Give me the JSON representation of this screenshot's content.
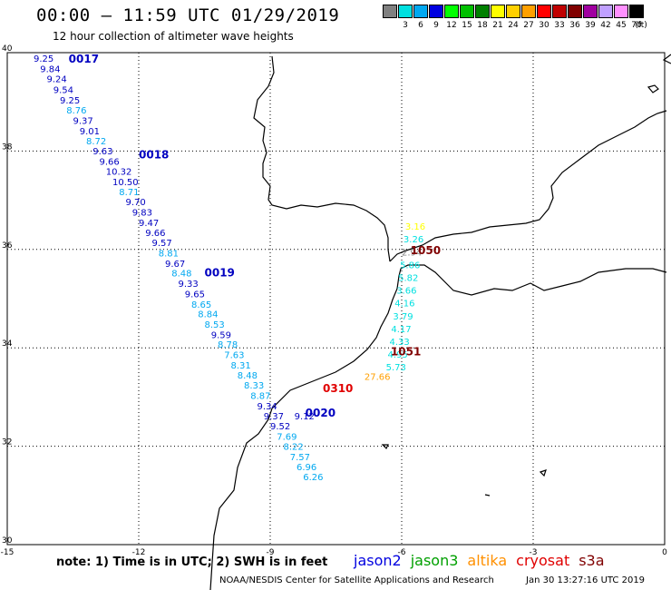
{
  "header": {
    "title": "00:00 – 11:59 UTC 01/29/2019",
    "subtitle": "12 hour collection of altimeter wave heights"
  },
  "color_scale": {
    "unit_label": "(ft)",
    "swatches": [
      {
        "color": "#808080",
        "label": ""
      },
      {
        "color": "#00e0e0",
        "label": "3"
      },
      {
        "color": "#00a8f0",
        "label": "6"
      },
      {
        "color": "#0000e0",
        "label": "9"
      },
      {
        "color": "#00ff00",
        "label": "12"
      },
      {
        "color": "#00c000",
        "label": "15"
      },
      {
        "color": "#008000",
        "label": "18"
      },
      {
        "color": "#ffff00",
        "label": "21"
      },
      {
        "color": "#ffd000",
        "label": "24"
      },
      {
        "color": "#ffa000",
        "label": "27"
      },
      {
        "color": "#ff0000",
        "label": "30"
      },
      {
        "color": "#c00000",
        "label": "33"
      },
      {
        "color": "#800000",
        "label": "36"
      },
      {
        "color": "#a000a0",
        "label": "39"
      },
      {
        "color": "#c0a0ff",
        "label": "42"
      },
      {
        "color": "#ff90ff",
        "label": "45"
      },
      {
        "color": "#000000",
        "label": "70"
      }
    ]
  },
  "map": {
    "lon_ticks": [
      "-15",
      "-12",
      "-9",
      "-6",
      "-3",
      "0"
    ],
    "lat_ticks": [
      "40",
      "38",
      "36",
      "34",
      "32",
      "30"
    ],
    "lon_range": [
      -15,
      0
    ],
    "lat_range": [
      30,
      40
    ],
    "tracks": [
      {
        "label": "0017",
        "color": "#0000c0",
        "lat": 39.8,
        "lon": -13.6
      },
      {
        "label": "0018",
        "color": "#0000c0",
        "lat": 37.85,
        "lon": -12.0
      },
      {
        "label": "0019",
        "color": "#0000c0",
        "lat": 35.45,
        "lon": -10.5
      },
      {
        "label": "0020",
        "color": "#0000c0",
        "lat": 32.6,
        "lon": -8.2
      },
      {
        "label": "0310",
        "color": "#e00000",
        "lat": 33.1,
        "lon": -7.8
      },
      {
        "label": "1050",
        "color": "#800000",
        "lat": 35.9,
        "lon": -5.8
      },
      {
        "label": "1051",
        "color": "#800000",
        "lat": 33.85,
        "lon": -6.25
      }
    ],
    "jason2_points": [
      {
        "v": "9.25",
        "lat": 39.82,
        "lon": -14.4,
        "c": "#0000c0"
      },
      {
        "v": "9.84",
        "lat": 39.6,
        "lon": -14.25,
        "c": "#0000c0"
      },
      {
        "v": "9.24",
        "lat": 39.4,
        "lon": -14.1,
        "c": "#0000c0"
      },
      {
        "v": "9.54",
        "lat": 39.18,
        "lon": -13.95,
        "c": "#0000c0"
      },
      {
        "v": "9.25",
        "lat": 38.97,
        "lon": -13.8,
        "c": "#0000c0"
      },
      {
        "v": "8.76",
        "lat": 38.76,
        "lon": -13.65,
        "c": "#00a8f0"
      },
      {
        "v": "9.37",
        "lat": 38.55,
        "lon": -13.5,
        "c": "#0000c0"
      },
      {
        "v": "9.01",
        "lat": 38.34,
        "lon": -13.35,
        "c": "#0000c0"
      },
      {
        "v": "8.72",
        "lat": 38.14,
        "lon": -13.2,
        "c": "#00a8f0"
      },
      {
        "v": "9.63",
        "lat": 37.93,
        "lon": -13.05,
        "c": "#0000c0"
      },
      {
        "v": "9.66",
        "lat": 37.72,
        "lon": -12.9,
        "c": "#0000c0"
      },
      {
        "v": "10.32",
        "lat": 37.52,
        "lon": -12.75,
        "c": "#0000c0"
      },
      {
        "v": "10.50",
        "lat": 37.31,
        "lon": -12.6,
        "c": "#0000c0"
      },
      {
        "v": "8.71",
        "lat": 37.1,
        "lon": -12.45,
        "c": "#00a8f0"
      },
      {
        "v": "9.70",
        "lat": 36.9,
        "lon": -12.3,
        "c": "#0000c0"
      },
      {
        "v": "9.83",
        "lat": 36.69,
        "lon": -12.15,
        "c": "#0000c0"
      },
      {
        "v": "9.47",
        "lat": 36.48,
        "lon": -12.0,
        "c": "#0000c0"
      },
      {
        "v": "9.66",
        "lat": 36.27,
        "lon": -11.85,
        "c": "#0000c0"
      },
      {
        "v": "9.57",
        "lat": 36.07,
        "lon": -11.7,
        "c": "#0000c0"
      },
      {
        "v": "8.81",
        "lat": 35.86,
        "lon": -11.55,
        "c": "#00a8f0"
      },
      {
        "v": "9.67",
        "lat": 35.65,
        "lon": -11.4,
        "c": "#0000c0"
      },
      {
        "v": "8.48",
        "lat": 35.45,
        "lon": -11.25,
        "c": "#00a8f0"
      },
      {
        "v": "9.33",
        "lat": 35.24,
        "lon": -11.1,
        "c": "#0000c0"
      },
      {
        "v": "9.65",
        "lat": 35.03,
        "lon": -10.95,
        "c": "#0000c0"
      },
      {
        "v": "8.65",
        "lat": 34.82,
        "lon": -10.8,
        "c": "#00a8f0"
      },
      {
        "v": "8.84",
        "lat": 34.62,
        "lon": -10.65,
        "c": "#00a8f0"
      },
      {
        "v": "8.53",
        "lat": 34.41,
        "lon": -10.5,
        "c": "#00a8f0"
      },
      {
        "v": "9.59",
        "lat": 34.2,
        "lon": -10.35,
        "c": "#0000c0"
      },
      {
        "v": "8.78",
        "lat": 34.0,
        "lon": -10.2,
        "c": "#00a8f0"
      },
      {
        "v": "7.63",
        "lat": 33.79,
        "lon": -10.05,
        "c": "#00a8f0"
      },
      {
        "v": "8.31",
        "lat": 33.58,
        "lon": -9.9,
        "c": "#00a8f0"
      },
      {
        "v": "8.48",
        "lat": 33.38,
        "lon": -9.75,
        "c": "#00a8f0"
      },
      {
        "v": "8.33",
        "lat": 33.17,
        "lon": -9.6,
        "c": "#00a8f0"
      },
      {
        "v": "8.87",
        "lat": 32.96,
        "lon": -9.45,
        "c": "#00a8f0"
      },
      {
        "v": "9.34",
        "lat": 32.75,
        "lon": -9.3,
        "c": "#0000c0"
      },
      {
        "v": "9.37",
        "lat": 32.55,
        "lon": -9.15,
        "c": "#0000c0"
      },
      {
        "v": "9.52",
        "lat": 32.34,
        "lon": -9.0,
        "c": "#0000c0"
      },
      {
        "v": "7.69",
        "lat": 32.13,
        "lon": -8.85,
        "c": "#00a8f0"
      },
      {
        "v": "8.22",
        "lat": 31.93,
        "lon": -8.7,
        "c": "#00a8f0"
      },
      {
        "v": "7.57",
        "lat": 31.72,
        "lon": -8.55,
        "c": "#00a8f0"
      },
      {
        "v": "6.96",
        "lat": 31.51,
        "lon": -8.4,
        "c": "#00a8f0"
      },
      {
        "v": "6.26",
        "lat": 31.31,
        "lon": -8.25,
        "c": "#00a8f0"
      }
    ],
    "s3a_points": [
      {
        "v": "3.16",
        "lat": 36.4,
        "lon": -5.92,
        "c": "#ffff00"
      },
      {
        "v": "3.26",
        "lat": 36.14,
        "lon": -5.96,
        "c": "#00e0e0"
      },
      {
        "v": "2.94",
        "lat": 35.88,
        "lon": -6.0,
        "c": "#808080"
      },
      {
        "v": "5.86",
        "lat": 35.62,
        "lon": -6.04,
        "c": "#00e0e0"
      },
      {
        "v": "5.82",
        "lat": 35.36,
        "lon": -6.08,
        "c": "#00e0e0"
      },
      {
        "v": "3.66",
        "lat": 35.1,
        "lon": -6.12,
        "c": "#00e0e0"
      },
      {
        "v": "4.16",
        "lat": 34.84,
        "lon": -6.16,
        "c": "#00e0e0"
      },
      {
        "v": "3.79",
        "lat": 34.58,
        "lon": -6.2,
        "c": "#00e0e0"
      },
      {
        "v": "4.17",
        "lat": 34.32,
        "lon": -6.24,
        "c": "#00e0e0"
      },
      {
        "v": "4.33",
        "lat": 34.06,
        "lon": -6.28,
        "c": "#00e0e0"
      },
      {
        "v": "4.95",
        "lat": 33.8,
        "lon": -6.32,
        "c": "#00e0e0"
      },
      {
        "v": "5.73",
        "lat": 33.54,
        "lon": -6.36,
        "c": "#00e0e0"
      },
      {
        "v": "27.66",
        "lat": 33.35,
        "lon": -6.85,
        "c": "#ffa000"
      }
    ],
    "cryosat_points": [
      {
        "v": "9.12",
        "lat": 32.55,
        "lon": -8.45,
        "c": "#0000c0"
      }
    ]
  },
  "bottom": {
    "note": "note:  1) Time is in UTC;  2) SWH is in feet",
    "satellites": [
      {
        "name": "jason2",
        "color": "#0000e0"
      },
      {
        "name": "jason3",
        "color": "#00a000"
      },
      {
        "name": "altika",
        "color": "#ff9000"
      },
      {
        "name": "cryosat",
        "color": "#e00000"
      },
      {
        "name": "s3a",
        "color": "#800000"
      }
    ],
    "credit": "NOAA/NESDIS Center for Satellite Applications and Research",
    "timestamp": "Jan 30 13:27:16 UTC 2019"
  }
}
